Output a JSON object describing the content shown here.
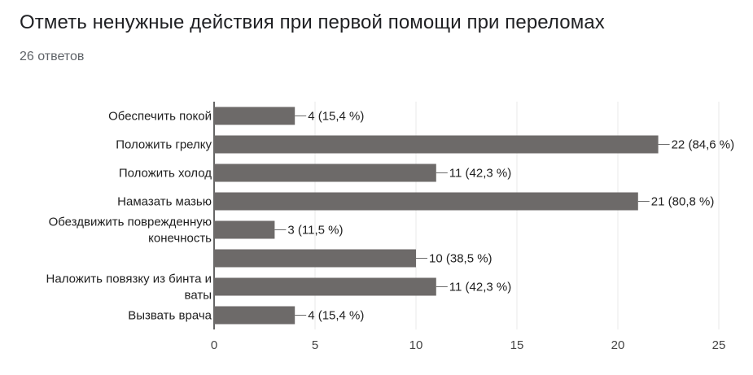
{
  "header": {
    "title": "Отметь ненужные действия при первой помощи при переломах",
    "responses": "26 ответов"
  },
  "colors": {
    "bar": "#6d6a69",
    "grid": "#e8e8e8",
    "axis": "#333333",
    "label": "#212121"
  },
  "chart_data": {
    "type": "bar",
    "orientation": "horizontal",
    "categories": [
      "Обеспечить покой",
      "Положить грелку",
      "Положить холод",
      "Намазать мазью",
      "Обездвижить поврежденную конечность",
      "",
      "Наложить повязку из бинта и ваты",
      "Вызвать врача"
    ],
    "category_lines": [
      [
        "Обеспечить покой"
      ],
      [
        "Положить грелку"
      ],
      [
        "Положить холод"
      ],
      [
        "Намазать мазью"
      ],
      [
        "Обездвижить поврежденную",
        "конечность"
      ],
      [],
      [
        "Наложить повязку из бинта и",
        "ваты"
      ],
      [
        "Вызвать врача"
      ]
    ],
    "values": [
      4,
      22,
      11,
      21,
      3,
      10,
      11,
      4
    ],
    "data_labels": [
      "4 (15,4 %)",
      "22 (84,6 %)",
      "11 (42,3 %)",
      "21 (80,8 %)",
      "3 (11,5 %)",
      "10 (38,5 %)",
      "11 (42,3 %)",
      "4 (15,4 %)"
    ],
    "xlim": [
      0,
      25
    ],
    "x_ticks": [
      0,
      5,
      10,
      15,
      20,
      25
    ],
    "grid": true,
    "legend": "none"
  }
}
